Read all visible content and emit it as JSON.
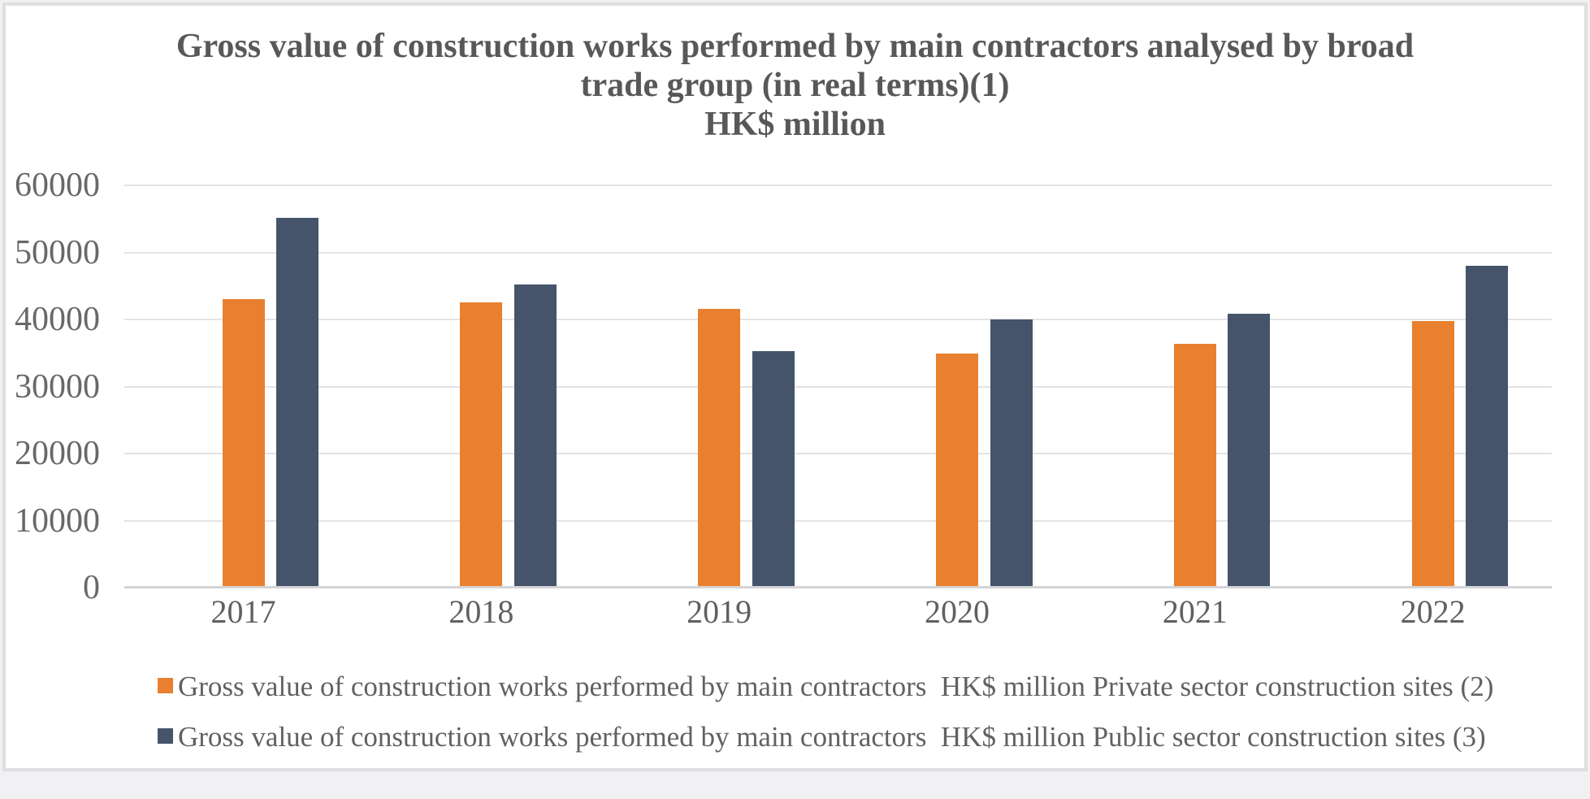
{
  "chart_data": {
    "type": "bar",
    "title_lines": [
      "Gross value of construction works performed by main contractors analysed by broad",
      "trade group (in real terms)(1)",
      "HK$ million"
    ],
    "categories": [
      "2017",
      "2018",
      "2019",
      "2020",
      "2021",
      "2022"
    ],
    "series": [
      {
        "name": "Gross value of construction works performed by main contractors  HK$ million Private sector construction sites (2)",
        "color": "#E8802F",
        "values": [
          43000,
          42600,
          41600,
          34900,
          36400,
          39800
        ]
      },
      {
        "name": "Gross value of construction works performed by main contractors  HK$ million Public sector construction sites (3)",
        "color": "#45546A",
        "values": [
          55200,
          45200,
          35300,
          40000,
          40800,
          48000
        ]
      }
    ],
    "ylim": [
      0,
      60000
    ],
    "ytick_step": 10000,
    "ytick_labels": [
      "0",
      "10000",
      "20000",
      "30000",
      "40000",
      "50000",
      "60000"
    ],
    "grid": "horizontal",
    "legend_position": "bottom",
    "styling": {
      "gridline_color": "#e3e3e5",
      "axis_line_color": "#d5d5d8",
      "title_color": "#58585b",
      "tick_label_color": "#68686b",
      "legend_text_color": "#616164"
    }
  }
}
